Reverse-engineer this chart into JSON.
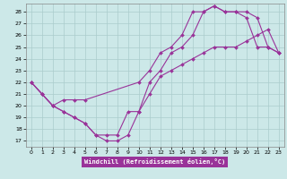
{
  "xlabel": "Windchill (Refroidissement éolien,°C)",
  "xlim": [
    -0.5,
    23.5
  ],
  "ylim": [
    16.5,
    28.7
  ],
  "yticks": [
    17,
    18,
    19,
    20,
    21,
    22,
    23,
    24,
    25,
    26,
    27,
    28
  ],
  "xticks": [
    0,
    1,
    2,
    3,
    4,
    5,
    6,
    7,
    8,
    9,
    10,
    11,
    12,
    13,
    14,
    15,
    16,
    17,
    18,
    19,
    20,
    21,
    22,
    23
  ],
  "bg_color": "#cce8e8",
  "grid_color": "#aacccc",
  "line_color": "#993399",
  "curves": [
    {
      "x": [
        0,
        1,
        2,
        3,
        4,
        5,
        10,
        11,
        12,
        13,
        14,
        15,
        16,
        17,
        18,
        19,
        20,
        21,
        22,
        23
      ],
      "y": [
        22,
        21,
        20,
        20.5,
        20.5,
        20.5,
        22,
        23,
        24.5,
        25,
        26,
        28,
        28,
        28.5,
        28,
        28,
        28,
        27.5,
        25,
        24.5
      ]
    },
    {
      "x": [
        0,
        1,
        2,
        3,
        4,
        5,
        6,
        7,
        8,
        9,
        10,
        11,
        12,
        13,
        14,
        15,
        16,
        17,
        18,
        19,
        20,
        21,
        22,
        23
      ],
      "y": [
        22,
        21,
        20,
        19.5,
        19,
        18.5,
        17.5,
        17,
        17,
        17.5,
        19.5,
        22,
        23,
        24.5,
        25,
        26,
        28,
        28.5,
        28,
        28,
        27.5,
        25,
        25,
        24.5
      ]
    },
    {
      "x": [
        0,
        1,
        2,
        3,
        4,
        5,
        6,
        7,
        8,
        9,
        10,
        11,
        12,
        13,
        14,
        15,
        16,
        17,
        18,
        19,
        20,
        21,
        22,
        23
      ],
      "y": [
        22,
        21,
        20,
        19.5,
        19,
        18.5,
        17.5,
        17.5,
        17.5,
        19.5,
        19.5,
        21,
        22.5,
        23,
        23.5,
        24,
        24.5,
        25,
        25,
        25,
        25.5,
        26,
        26.5,
        24.5
      ]
    }
  ]
}
